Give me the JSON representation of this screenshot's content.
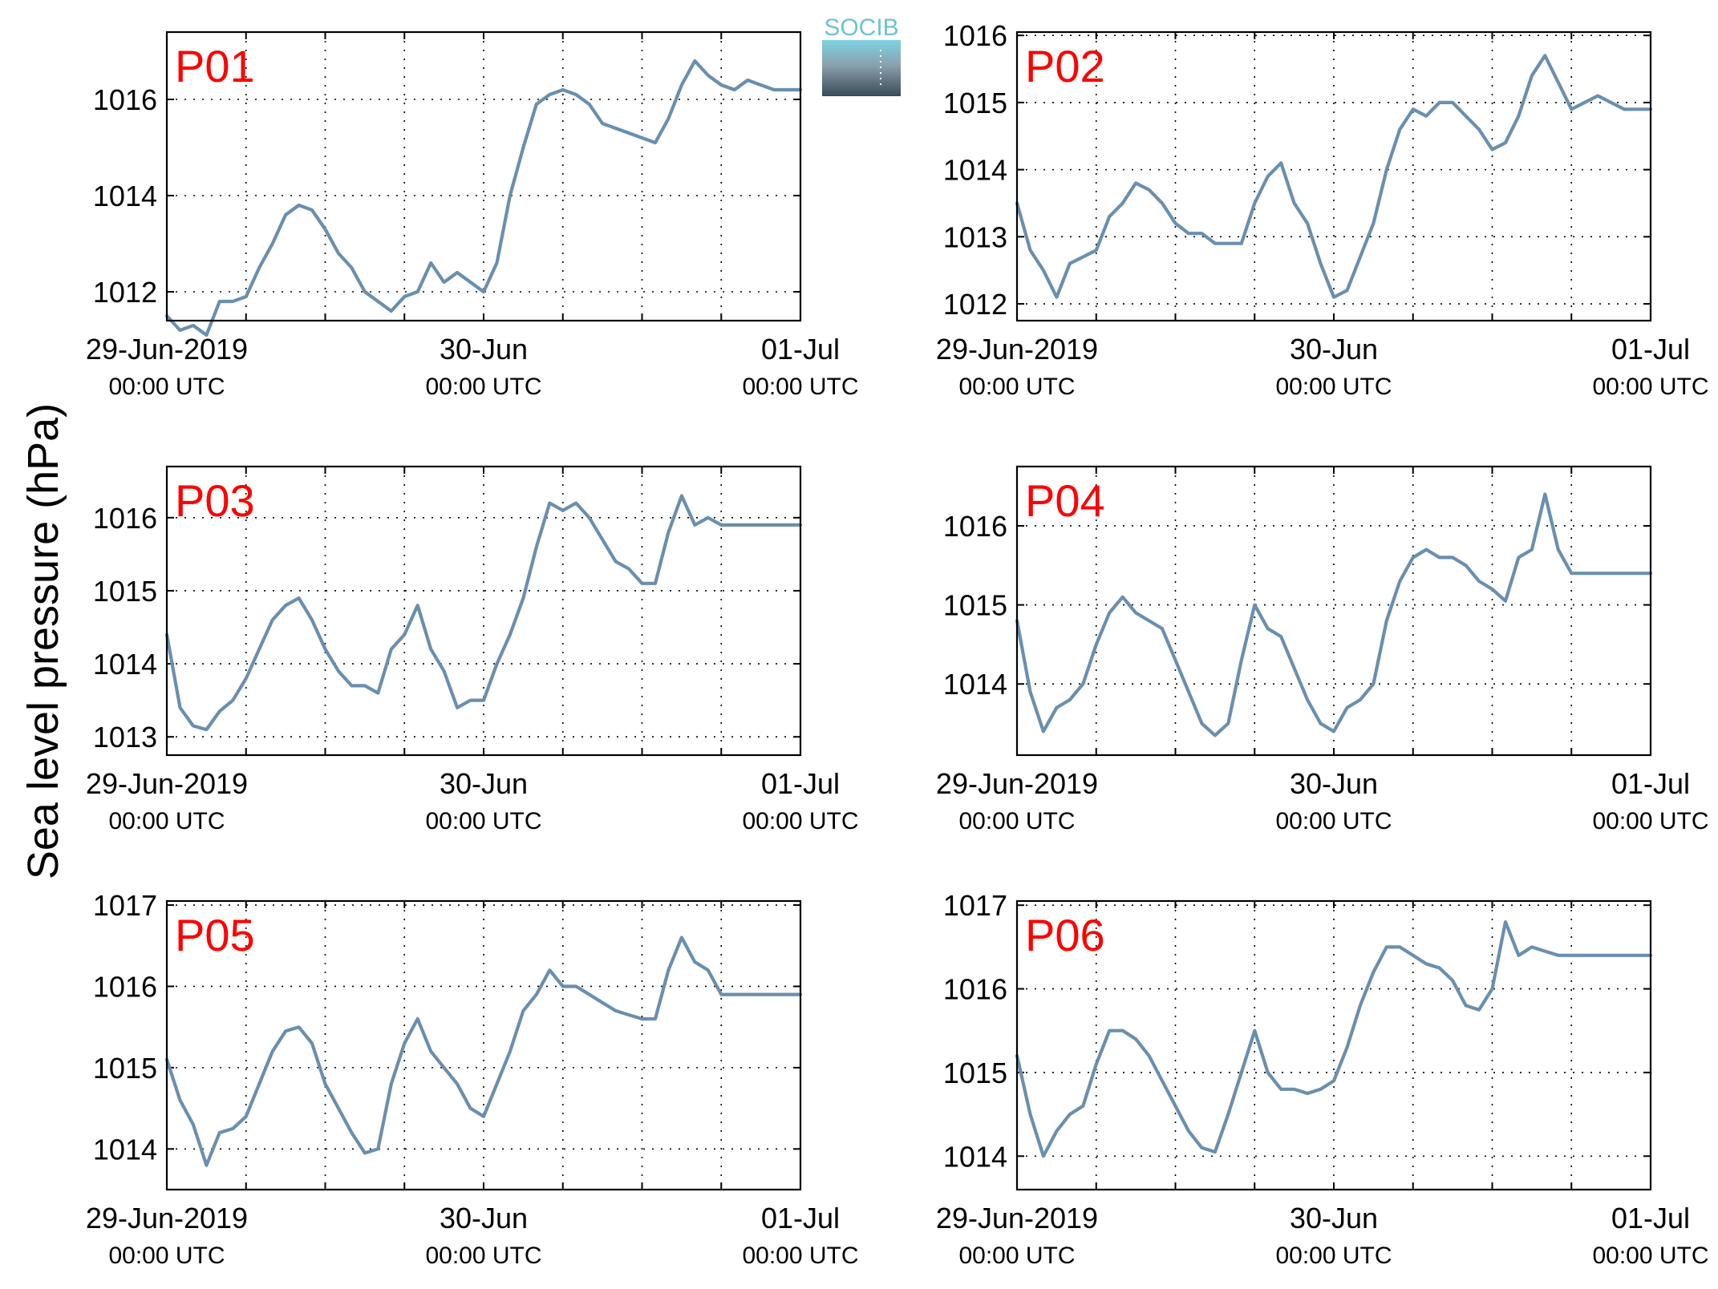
{
  "ylabel": "Sea level pressure (hPa)",
  "logo": {
    "text": "SOCIB"
  },
  "colors": {
    "series": "#6a8faf",
    "panel_label": "#ff0000"
  },
  "chart_data": [
    {
      "type": "line",
      "panel": "P01",
      "xlim": [
        "2019-06-29 00:00",
        "2019-07-01 00:00"
      ],
      "ylim": [
        1011.4,
        1017.4
      ],
      "yticks": [
        1012,
        1014,
        1016
      ],
      "xticks": [
        {
          "date": "29-Jun-2019",
          "time": "00:00 UTC"
        },
        {
          "date": "30-Jun",
          "time": "00:00 UTC"
        },
        {
          "date": "01-Jul",
          "time": "00:00 UTC"
        }
      ],
      "grid": true,
      "series": [
        {
          "x_hours": [
            0,
            1,
            2,
            3,
            4,
            5,
            6,
            7,
            8,
            9,
            10,
            11,
            12,
            13,
            14,
            15,
            16,
            17,
            18,
            19,
            20,
            21,
            22,
            23,
            24,
            25,
            26,
            27,
            28,
            29,
            30,
            31,
            32,
            33,
            34,
            35,
            36,
            37,
            38,
            39,
            40,
            41,
            42,
            43,
            44,
            45,
            46,
            47,
            48
          ],
          "y": [
            1011.5,
            1011.2,
            1011.3,
            1011.1,
            1011.8,
            1011.8,
            1011.9,
            1012.5,
            1013.0,
            1013.6,
            1013.8,
            1013.7,
            1013.3,
            1012.8,
            1012.5,
            1012.0,
            1011.8,
            1011.6,
            1011.9,
            1012.0,
            1012.6,
            1012.2,
            1012.4,
            1012.2,
            1012.0,
            1012.6,
            1014.0,
            1015.0,
            1015.9,
            1016.1,
            1016.2,
            1016.1,
            1015.9,
            1015.5,
            1015.4,
            1015.3,
            1015.2,
            1015.1,
            1015.6,
            1016.3,
            1016.8,
            1016.5,
            1016.3,
            1016.2,
            1016.4,
            1016.3,
            1016.2,
            1016.2,
            1016.2
          ]
        }
      ]
    },
    {
      "type": "line",
      "panel": "P02",
      "xlim": [
        "2019-06-29 00:00",
        "2019-07-01 00:00"
      ],
      "ylim": [
        1011.75,
        1016.05
      ],
      "yticks": [
        1012,
        1013,
        1014,
        1015,
        1016
      ],
      "xticks": [
        {
          "date": "29-Jun-2019",
          "time": "00:00 UTC"
        },
        {
          "date": "30-Jun",
          "time": "00:00 UTC"
        },
        {
          "date": "01-Jul",
          "time": "00:00 UTC"
        }
      ],
      "grid": true,
      "series": [
        {
          "x_hours": [
            0,
            1,
            2,
            3,
            4,
            5,
            6,
            7,
            8,
            9,
            10,
            11,
            12,
            13,
            14,
            15,
            16,
            17,
            18,
            19,
            20,
            21,
            22,
            23,
            24,
            25,
            26,
            27,
            28,
            29,
            30,
            31,
            32,
            33,
            34,
            35,
            36,
            37,
            38,
            39,
            40,
            41,
            42,
            43,
            44,
            45,
            46,
            47,
            48
          ],
          "y": [
            1013.5,
            1012.8,
            1012.5,
            1012.1,
            1012.6,
            1012.7,
            1012.8,
            1013.3,
            1013.5,
            1013.8,
            1013.7,
            1013.5,
            1013.2,
            1013.05,
            1013.05,
            1012.9,
            1012.9,
            1012.9,
            1013.5,
            1013.9,
            1014.1,
            1013.5,
            1013.2,
            1012.6,
            1012.1,
            1012.2,
            1012.7,
            1013.2,
            1014.0,
            1014.6,
            1014.9,
            1014.8,
            1015.0,
            1015.0,
            1014.8,
            1014.6,
            1014.3,
            1014.4,
            1014.8,
            1015.4,
            1015.7,
            1015.3,
            1014.9,
            1015.0,
            1015.1,
            1015.0,
            1014.9,
            1014.9,
            1014.9
          ]
        }
      ]
    },
    {
      "type": "line",
      "panel": "P03",
      "xlim": [
        "2019-06-29 00:00",
        "2019-07-01 00:00"
      ],
      "ylim": [
        1012.75,
        1016.7
      ],
      "yticks": [
        1013,
        1014,
        1015,
        1016
      ],
      "xticks": [
        {
          "date": "29-Jun-2019",
          "time": "00:00 UTC"
        },
        {
          "date": "30-Jun",
          "time": "00:00 UTC"
        },
        {
          "date": "01-Jul",
          "time": "00:00 UTC"
        }
      ],
      "grid": true,
      "series": [
        {
          "x_hours": [
            0,
            1,
            2,
            3,
            4,
            5,
            6,
            7,
            8,
            9,
            10,
            11,
            12,
            13,
            14,
            15,
            16,
            17,
            18,
            19,
            20,
            21,
            22,
            23,
            24,
            25,
            26,
            27,
            28,
            29,
            30,
            31,
            32,
            33,
            34,
            35,
            36,
            37,
            38,
            39,
            40,
            41,
            42,
            43,
            44,
            45,
            46,
            47,
            48
          ],
          "y": [
            1014.4,
            1013.4,
            1013.15,
            1013.1,
            1013.35,
            1013.5,
            1013.8,
            1014.2,
            1014.6,
            1014.8,
            1014.9,
            1014.6,
            1014.2,
            1013.9,
            1013.7,
            1013.7,
            1013.6,
            1014.2,
            1014.4,
            1014.8,
            1014.2,
            1013.9,
            1013.4,
            1013.5,
            1013.5,
            1014.0,
            1014.4,
            1014.9,
            1015.6,
            1016.2,
            1016.1,
            1016.2,
            1016.0,
            1015.7,
            1015.4,
            1015.3,
            1015.1,
            1015.1,
            1015.8,
            1016.3,
            1015.9,
            1016.0,
            1015.9,
            1015.9,
            1015.9,
            1015.9,
            1015.9,
            1015.9,
            1015.9
          ]
        }
      ]
    },
    {
      "type": "line",
      "panel": "P04",
      "xlim": [
        "2019-06-29 00:00",
        "2019-07-01 00:00"
      ],
      "ylim": [
        1013.1,
        1016.75
      ],
      "yticks": [
        1014,
        1015,
        1016
      ],
      "xticks": [
        {
          "date": "29-Jun-2019",
          "time": "00:00 UTC"
        },
        {
          "date": "30-Jun",
          "time": "00:00 UTC"
        },
        {
          "date": "01-Jul",
          "time": "00:00 UTC"
        }
      ],
      "grid": true,
      "series": [
        {
          "x_hours": [
            0,
            1,
            2,
            3,
            4,
            5,
            6,
            7,
            8,
            9,
            10,
            11,
            12,
            13,
            14,
            15,
            16,
            17,
            18,
            19,
            20,
            21,
            22,
            23,
            24,
            25,
            26,
            27,
            28,
            29,
            30,
            31,
            32,
            33,
            34,
            35,
            36,
            37,
            38,
            39,
            40,
            41,
            42,
            43,
            44,
            45,
            46,
            47,
            48
          ],
          "y": [
            1014.8,
            1013.9,
            1013.4,
            1013.7,
            1013.8,
            1014.0,
            1014.5,
            1014.9,
            1015.1,
            1014.9,
            1014.8,
            1014.7,
            1014.3,
            1013.9,
            1013.5,
            1013.35,
            1013.5,
            1014.3,
            1015.0,
            1014.7,
            1014.6,
            1014.2,
            1013.8,
            1013.5,
            1013.4,
            1013.7,
            1013.8,
            1014.0,
            1014.8,
            1015.3,
            1015.6,
            1015.7,
            1015.6,
            1015.6,
            1015.5,
            1015.3,
            1015.2,
            1015.05,
            1015.6,
            1015.7,
            1016.4,
            1015.7,
            1015.4,
            1015.4,
            1015.4,
            1015.4,
            1015.4,
            1015.4,
            1015.4
          ]
        }
      ]
    },
    {
      "type": "line",
      "panel": "P05",
      "xlim": [
        "2019-06-29 00:00",
        "2019-07-01 00:00"
      ],
      "ylim": [
        1013.5,
        1017.05
      ],
      "yticks": [
        1014,
        1015,
        1016,
        1017
      ],
      "xticks": [
        {
          "date": "29-Jun-2019",
          "time": "00:00 UTC"
        },
        {
          "date": "30-Jun",
          "time": "00:00 UTC"
        },
        {
          "date": "01-Jul",
          "time": "00:00 UTC"
        }
      ],
      "grid": true,
      "series": [
        {
          "x_hours": [
            0,
            1,
            2,
            3,
            4,
            5,
            6,
            7,
            8,
            9,
            10,
            11,
            12,
            13,
            14,
            15,
            16,
            17,
            18,
            19,
            20,
            21,
            22,
            23,
            24,
            25,
            26,
            27,
            28,
            29,
            30,
            31,
            32,
            33,
            34,
            35,
            36,
            37,
            38,
            39,
            40,
            41,
            42,
            43,
            44,
            45,
            46,
            47,
            48
          ],
          "y": [
            1015.1,
            1014.6,
            1014.3,
            1013.8,
            1014.2,
            1014.25,
            1014.4,
            1014.8,
            1015.2,
            1015.45,
            1015.5,
            1015.3,
            1014.8,
            1014.5,
            1014.2,
            1013.95,
            1014.0,
            1014.8,
            1015.3,
            1015.6,
            1015.2,
            1015.0,
            1014.8,
            1014.5,
            1014.4,
            1014.8,
            1015.2,
            1015.7,
            1015.9,
            1016.2,
            1016.0,
            1016.0,
            1015.9,
            1015.8,
            1015.7,
            1015.65,
            1015.6,
            1015.6,
            1016.2,
            1016.6,
            1016.3,
            1016.2,
            1015.9,
            1015.9,
            1015.9,
            1015.9,
            1015.9,
            1015.9,
            1015.9
          ]
        }
      ]
    },
    {
      "type": "line",
      "panel": "P06",
      "xlim": [
        "2019-06-29 00:00",
        "2019-07-01 00:00"
      ],
      "ylim": [
        1013.6,
        1017.05
      ],
      "yticks": [
        1014,
        1015,
        1016,
        1017
      ],
      "xticks": [
        {
          "date": "29-Jun-2019",
          "time": "00:00 UTC"
        },
        {
          "date": "30-Jun",
          "time": "00:00 UTC"
        },
        {
          "date": "01-Jul",
          "time": "00:00 UTC"
        }
      ],
      "grid": true,
      "series": [
        {
          "x_hours": [
            0,
            1,
            2,
            3,
            4,
            5,
            6,
            7,
            8,
            9,
            10,
            11,
            12,
            13,
            14,
            15,
            16,
            17,
            18,
            19,
            20,
            21,
            22,
            23,
            24,
            25,
            26,
            27,
            28,
            29,
            30,
            31,
            32,
            33,
            34,
            35,
            36,
            37,
            38,
            39,
            40,
            41,
            42,
            43,
            44,
            45,
            46,
            47,
            48
          ],
          "y": [
            1015.2,
            1014.5,
            1014.0,
            1014.3,
            1014.5,
            1014.6,
            1015.1,
            1015.5,
            1015.5,
            1015.4,
            1015.2,
            1014.9,
            1014.6,
            1014.3,
            1014.1,
            1014.05,
            1014.5,
            1015.0,
            1015.5,
            1015.0,
            1014.8,
            1014.8,
            1014.75,
            1014.8,
            1014.9,
            1015.3,
            1015.8,
            1016.2,
            1016.5,
            1016.5,
            1016.4,
            1016.3,
            1016.25,
            1016.1,
            1015.8,
            1015.75,
            1016.0,
            1016.8,
            1016.4,
            1016.5,
            1016.45,
            1016.4,
            1016.4,
            1016.4,
            1016.4,
            1016.4,
            1016.4,
            1016.4,
            1016.4
          ]
        }
      ]
    }
  ]
}
